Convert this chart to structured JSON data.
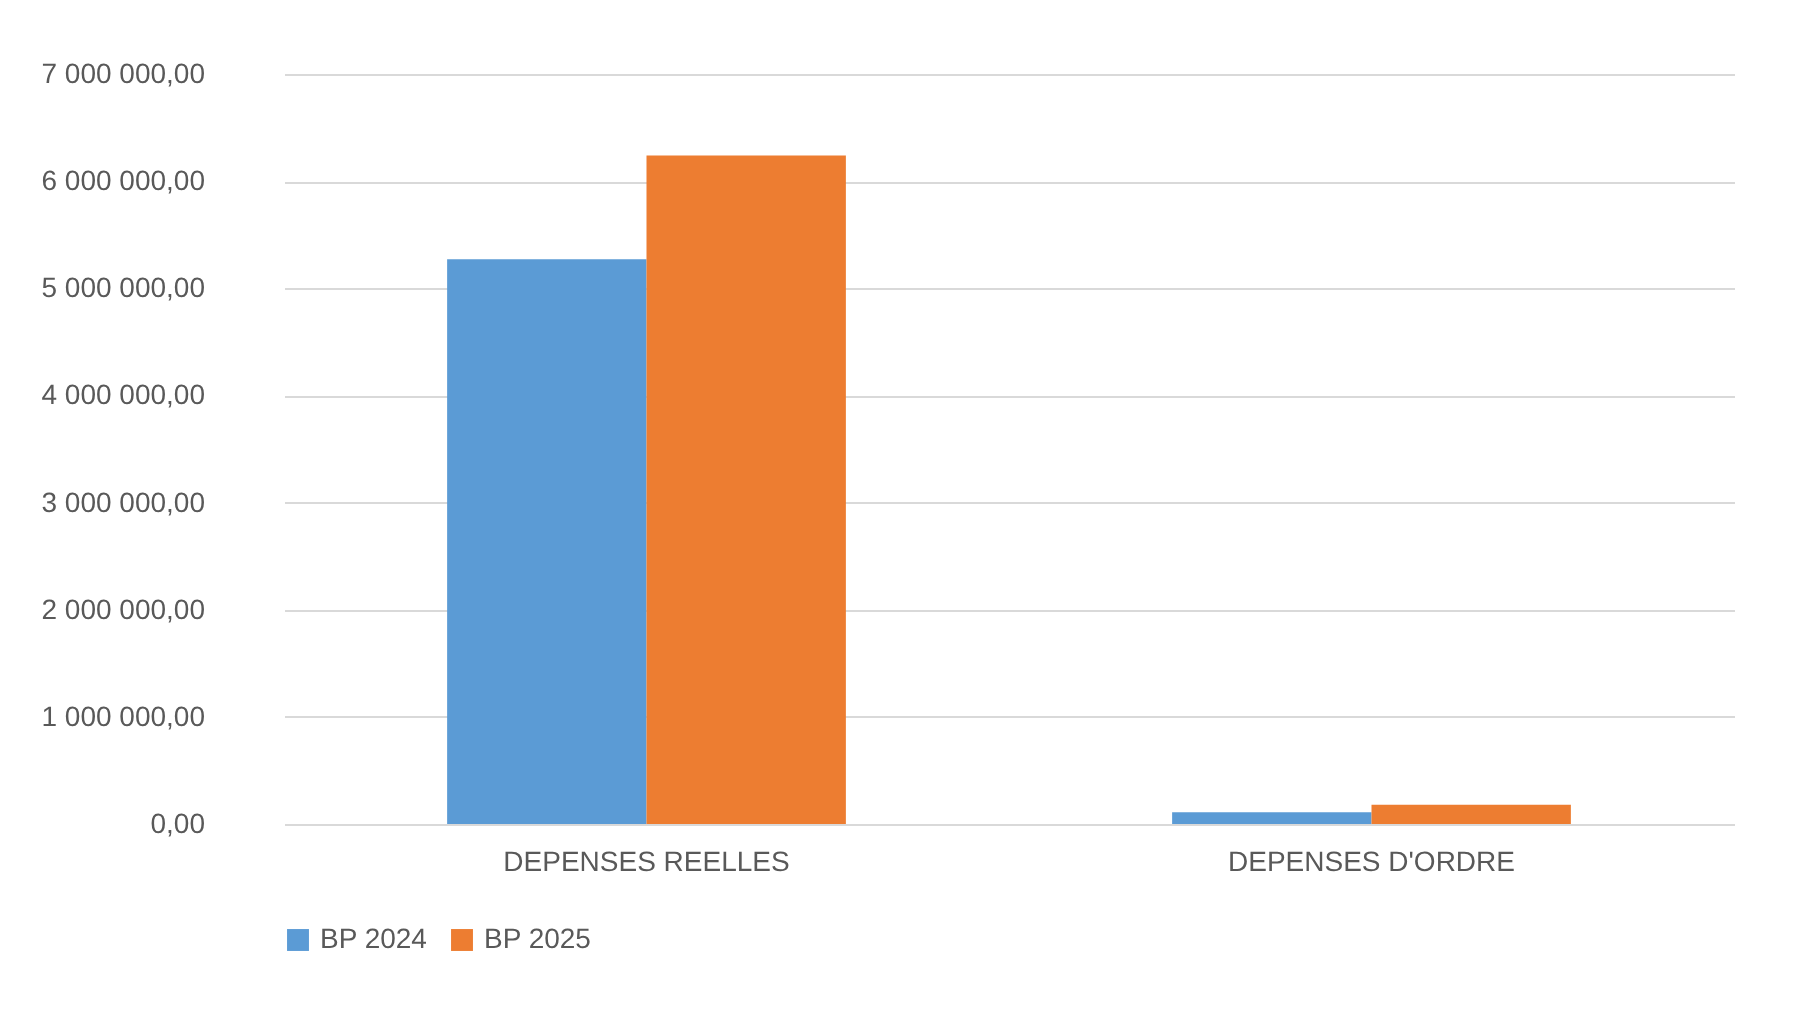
{
  "chart_data": {
    "type": "bar",
    "categories": [
      "DEPENSES REELLES",
      "DEPENSES D'ORDRE"
    ],
    "series": [
      {
        "name": "BP 2024",
        "color": "#5b9bd5",
        "values": [
          5270000,
          110000
        ]
      },
      {
        "name": "BP 2025",
        "color": "#ed7d31",
        "values": [
          6240000,
          180000
        ]
      }
    ],
    "ylim": [
      0,
      7000000
    ],
    "yticks": [
      {
        "value": 0,
        "label": "0,00"
      },
      {
        "value": 1000000,
        "label": "1 000 000,00"
      },
      {
        "value": 2000000,
        "label": "2 000 000,00"
      },
      {
        "value": 3000000,
        "label": "3 000 000,00"
      },
      {
        "value": 4000000,
        "label": "4 000 000,00"
      },
      {
        "value": 5000000,
        "label": "5 000 000,00"
      },
      {
        "value": 6000000,
        "label": "6 000 000,00"
      },
      {
        "value": 7000000,
        "label": "7 000 000,00"
      }
    ],
    "grid": "y",
    "legend": "bottom"
  }
}
